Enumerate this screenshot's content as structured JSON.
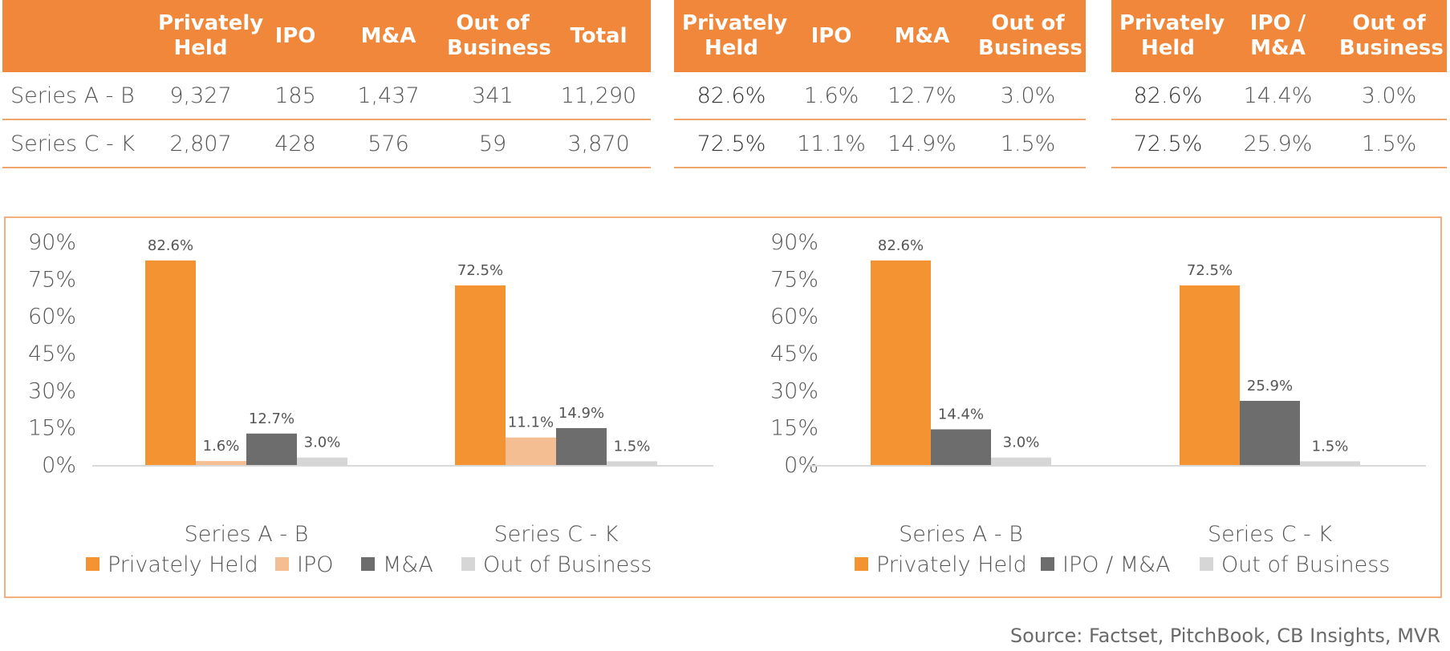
{
  "colors": {
    "header_bg": "#f0873a",
    "header_text": "#ffffff",
    "rule": "#f0a56c",
    "private": "#f39332",
    "ipo": "#f4bd92",
    "mna": "#6d6d6d",
    "out": "#d6d6d6",
    "box_border": "#f4b07c"
  },
  "table1": {
    "headers": [
      "Privately Held",
      "IPO",
      "M&A",
      "Out of Business",
      "Total"
    ],
    "rows": [
      {
        "label": "Series A - B",
        "cells": [
          "9,327",
          "185",
          "1,437",
          "341",
          "11,290"
        ]
      },
      {
        "label": "Series C - K",
        "cells": [
          "2,807",
          "428",
          "576",
          "59",
          "3,870"
        ]
      }
    ]
  },
  "table2": {
    "headers": [
      "Privately Held",
      "IPO",
      "M&A",
      "Out of Business"
    ],
    "rows": [
      {
        "cells": [
          "82.6%",
          "1.6%",
          "12.7%",
          "3.0%"
        ]
      },
      {
        "cells": [
          "72.5%",
          "11.1%",
          "14.9%",
          "1.5%"
        ]
      }
    ]
  },
  "table3": {
    "headers": [
      "Privately Held",
      "IPO / M&A",
      "Out of Business"
    ],
    "rows": [
      {
        "cells": [
          "82.6%",
          "14.4%",
          "3.0%"
        ]
      },
      {
        "cells": [
          "72.5%",
          "25.9%",
          "1.5%"
        ]
      }
    ]
  },
  "chart_data": [
    {
      "type": "bar",
      "categories": [
        "Series A - B",
        "Series C - K"
      ],
      "series": [
        {
          "name": "Privately Held",
          "values": [
            82.6,
            72.5
          ],
          "labels": [
            "82.6%",
            "72.5%"
          ],
          "color": "#f39332"
        },
        {
          "name": "IPO",
          "values": [
            1.6,
            11.1
          ],
          "labels": [
            "1.6%",
            "11.1%"
          ],
          "color": "#f4bd92"
        },
        {
          "name": "M&A",
          "values": [
            12.7,
            14.9
          ],
          "labels": [
            "12.7%",
            "14.9%"
          ],
          "color": "#6d6d6d"
        },
        {
          "name": "Out of Business",
          "values": [
            3.0,
            1.5
          ],
          "labels": [
            "3.0%",
            "1.5%"
          ],
          "color": "#d6d6d6"
        }
      ],
      "yticks": [
        "90%",
        "75%",
        "60%",
        "45%",
        "30%",
        "15%",
        "0%"
      ],
      "ylim": [
        0,
        90
      ],
      "grid": false,
      "legend": "bottom"
    },
    {
      "type": "bar",
      "categories": [
        "Series A - B",
        "Series C - K"
      ],
      "series": [
        {
          "name": "Privately Held",
          "values": [
            82.6,
            72.5
          ],
          "labels": [
            "82.6%",
            "72.5%"
          ],
          "color": "#f39332"
        },
        {
          "name": "IPO / M&A",
          "values": [
            14.4,
            25.9
          ],
          "labels": [
            "14.4%",
            "25.9%"
          ],
          "color": "#6d6d6d"
        },
        {
          "name": "Out of Business",
          "values": [
            3.0,
            1.5
          ],
          "labels": [
            "3.0%",
            "1.5%"
          ],
          "color": "#d6d6d6"
        }
      ],
      "yticks": [
        "90%",
        "75%",
        "60%",
        "45%",
        "30%",
        "15%",
        "0%"
      ],
      "ylim": [
        0,
        90
      ],
      "grid": false,
      "legend": "bottom"
    }
  ],
  "source": "Source: Factset, PitchBook, CB Insights, MVR"
}
